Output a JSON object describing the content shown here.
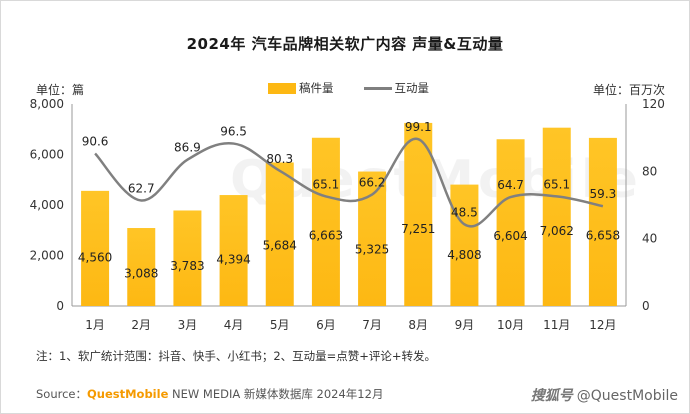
{
  "title": "2024年 汽车品牌相关软广内容 声量&互动量",
  "unit_left": "单位：篇",
  "unit_right": "单位：百万次",
  "legend": {
    "bar": "稿件量",
    "line": "互动量"
  },
  "note": "注：1、软广统计范围：抖音、快手、小红书；2、互动量=点赞+评论+转发。",
  "source": {
    "prefix": "Source：",
    "brand": "QuestMobile",
    "brand_sub": "NEW MEDIA",
    "suffix": "新媒体数据库 2024年12月"
  },
  "watermark": {
    "bottom_a": "搜狐号",
    "bottom_b": "@QuestMobile",
    "center": "QuestMobile"
  },
  "colors": {
    "bar": "#FDB813",
    "bar_top": "#FFC526",
    "line": "#808080",
    "grid": "#e6e6e6"
  },
  "chart_data": {
    "type": "bar",
    "categories": [
      "1月",
      "2月",
      "3月",
      "4月",
      "5月",
      "6月",
      "7月",
      "8月",
      "9月",
      "10月",
      "11月",
      "12月"
    ],
    "series": [
      {
        "name": "稿件量",
        "type": "bar",
        "axis": "left",
        "values": [
          4560,
          3088,
          3783,
          4394,
          5684,
          6663,
          5325,
          7251,
          4808,
          6604,
          7062,
          6658
        ],
        "labels": [
          "4,560",
          "3,088",
          "3,783",
          "4,394",
          "5,684",
          "6,663",
          "5,325",
          "7,251",
          "4,808",
          "6,604",
          "7,062",
          "6,658"
        ]
      },
      {
        "name": "互动量",
        "type": "line",
        "axis": "right",
        "values": [
          90.6,
          62.7,
          86.9,
          96.5,
          80.3,
          65.1,
          66.2,
          99.1,
          48.5,
          64.7,
          65.1,
          59.3
        ],
        "labels": [
          "90.6",
          "62.7",
          "86.9",
          "96.5",
          "80.3",
          "65.1",
          "66.2",
          "99.1",
          "48.5",
          "64.7",
          "65.1",
          "59.3"
        ]
      }
    ],
    "y_left": {
      "min": 0,
      "max": 8000,
      "ticks": [
        0,
        2000,
        4000,
        6000,
        8000
      ],
      "tick_labels": [
        "0",
        "2,000",
        "4,000",
        "6,000",
        "8,000"
      ]
    },
    "y_right": {
      "min": 0,
      "max": 120,
      "ticks": [
        0,
        40,
        80,
        120
      ],
      "tick_labels": [
        "0",
        "40",
        "80",
        "120"
      ]
    },
    "grid": false
  }
}
